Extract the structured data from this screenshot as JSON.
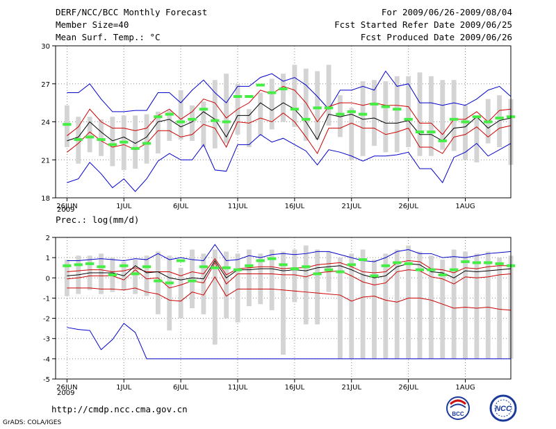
{
  "header": {
    "title": "DERF/NCC/BCC Monthly Forecast",
    "member_size": "Member Size=40",
    "valid_range": "For 2009/06/26-2009/08/04",
    "started_refer": "Fcst Started Refer Date 2009/06/25",
    "produced": "Fcst Produced Date 2009/06/26"
  },
  "footer": {
    "url": "http://cmdp.ncc.cma.gov.cn",
    "credit": "GrADS: COLA/IGES"
  },
  "logos": {
    "bcc_text": "BCC",
    "ncc_text": "NCC"
  },
  "colors": {
    "spread_bar": "#d4d4d4",
    "max_min_line": "#0000cc",
    "quartile_line": "#cc0000",
    "ensemble_mean": "#000000",
    "obs_marker": "#44ee44",
    "grid": "#888888"
  },
  "chart_data": [
    {
      "type": "line",
      "title": "Mean Surf. Temp.: °C",
      "ylim": [
        18,
        30
      ],
      "yticks": [
        18,
        21,
        24,
        27,
        30
      ],
      "x_tick_positions": [
        1,
        6,
        11,
        16,
        21,
        26,
        31,
        36
      ],
      "x_tick_labels": [
        "26JUN",
        "1JUL",
        "6JUL",
        "11JUL",
        "16JUL",
        "21JUL",
        "26JUL",
        "1AUG"
      ],
      "x_sublabel": "2009",
      "xlim": [
        0,
        40
      ],
      "x": [
        1,
        2,
        3,
        4,
        5,
        6,
        7,
        8,
        9,
        10,
        11,
        12,
        13,
        14,
        15,
        16,
        17,
        18,
        19,
        20,
        21,
        22,
        23,
        24,
        25,
        26,
        27,
        28,
        29,
        30,
        31,
        32,
        33,
        34,
        35,
        36,
        37,
        38,
        39,
        40
      ],
      "spread_low": [
        22.0,
        20.7,
        21.6,
        21.3,
        20.5,
        20.2,
        20.3,
        20.7,
        21.5,
        22.5,
        22.6,
        22.5,
        22.0,
        21.9,
        22.3,
        23.0,
        22.0,
        22.9,
        23.4,
        24.0,
        23.6,
        22.5,
        22.6,
        23.7,
        22.8,
        21.0,
        21.3,
        22.1,
        21.6,
        21.6,
        22.0,
        21.3,
        21.3,
        21.8,
        21.7,
        21.0,
        20.8,
        22.3,
        22.0,
        20.6
      ],
      "spread_high": [
        25.3,
        24.4,
        24.4,
        24.2,
        24.4,
        24.5,
        24.5,
        24.6,
        24.8,
        24.9,
        26.5,
        25.3,
        25.6,
        27.3,
        27.8,
        27.0,
        25.0,
        26.3,
        27.4,
        27.8,
        28.5,
        28.2,
        28.0,
        28.5,
        26.1,
        25.1,
        27.2,
        27.3,
        27.2,
        27.6,
        27.6,
        27.9,
        27.6,
        27.3,
        27.3,
        25.3,
        24.3,
        25.8,
        26.1,
        25.8
      ],
      "series": [
        {
          "name": "ensemble max",
          "values": [
            26.3,
            26.3,
            27.0,
            25.8,
            24.8,
            24.8,
            24.9,
            24.9,
            26.3,
            26.3,
            25.5,
            26.5,
            27.3,
            26.3,
            25.5,
            26.8,
            26.8,
            27.5,
            27.8,
            27.2,
            27.5,
            26.9,
            26.0,
            25.0,
            26.5,
            26.5,
            26.8,
            26.5,
            28.0,
            26.8,
            27.0,
            25.5,
            25.5,
            25.3,
            25.5,
            25.3,
            25.8,
            26.5,
            26.8,
            26.0
          ]
        },
        {
          "name": "upper quartile",
          "values": [
            22.9,
            23.6,
            25.0,
            24.0,
            23.5,
            23.5,
            23.3,
            23.5,
            24.5,
            25.0,
            24.2,
            24.8,
            25.8,
            25.5,
            24.3,
            25.0,
            25.5,
            26.5,
            26.2,
            26.8,
            26.5,
            25.5,
            24.0,
            25.2,
            25.5,
            25.5,
            25.3,
            25.5,
            25.3,
            25.3,
            25.2,
            23.9,
            23.9,
            23.0,
            24.2,
            24.2,
            24.8,
            24.0,
            24.9,
            25.0
          ]
        },
        {
          "name": "ensemble mean",
          "values": [
            22.5,
            22.8,
            24.0,
            23.2,
            22.5,
            22.8,
            22.3,
            22.8,
            24.0,
            24.2,
            23.6,
            24.0,
            24.8,
            24.2,
            22.8,
            24.5,
            24.5,
            25.5,
            24.9,
            25.5,
            25.0,
            24.0,
            22.6,
            24.6,
            24.4,
            24.6,
            24.2,
            24.3,
            23.9,
            23.9,
            24.1,
            23.0,
            23.0,
            22.5,
            23.5,
            23.6,
            24.4,
            23.5,
            24.1,
            24.3
          ]
        },
        {
          "name": "lower quartile",
          "values": [
            21.6,
            22.3,
            23.2,
            22.5,
            22.0,
            22.2,
            21.8,
            22.3,
            23.3,
            23.3,
            22.8,
            23.0,
            23.8,
            23.5,
            22.0,
            24.0,
            23.9,
            24.3,
            24.0,
            24.7,
            24.0,
            22.8,
            21.5,
            23.5,
            23.5,
            23.9,
            23.5,
            23.5,
            23.0,
            23.2,
            23.5,
            22.0,
            22.0,
            21.5,
            22.8,
            23.0,
            23.6,
            22.8,
            23.5,
            23.7
          ]
        },
        {
          "name": "ensemble min",
          "values": [
            19.2,
            19.5,
            20.8,
            19.9,
            18.8,
            19.5,
            18.5,
            19.5,
            20.9,
            21.5,
            21.0,
            21.0,
            22.2,
            20.2,
            20.1,
            22.2,
            22.2,
            23.0,
            22.4,
            22.7,
            22.2,
            21.7,
            20.6,
            21.8,
            21.6,
            21.3,
            20.9,
            21.3,
            21.3,
            21.4,
            21.6,
            20.3,
            20.3,
            19.2,
            21.2,
            21.6,
            22.3,
            21.3,
            21.8,
            22.3
          ]
        },
        {
          "name": "observation",
          "values": [
            23.8,
            22.6,
            22.8,
            22.6,
            22.2,
            22.4,
            21.9,
            22.3,
            24.4,
            24.6,
            24.0,
            24.2,
            25.0,
            24.1,
            24.0,
            26.0,
            26.0,
            26.9,
            26.3,
            26.6,
            25.0,
            24.2,
            25.1,
            25.1,
            24.6,
            24.8,
            24.6,
            25.4,
            25.2,
            25.0,
            24.2,
            23.2,
            23.2,
            22.5,
            24.2,
            24.0,
            24.4,
            24.0,
            24.3,
            24.4
          ]
        }
      ]
    },
    {
      "type": "line",
      "title": "Prec.: log(mm/d)",
      "ylim": [
        -5,
        2
      ],
      "yticks": [
        -5,
        -4,
        -3,
        -2,
        -1,
        0,
        1,
        2
      ],
      "x_tick_positions": [
        1,
        6,
        11,
        16,
        21,
        26,
        31,
        36
      ],
      "x_tick_labels": [
        "26JUN",
        "1JUL",
        "6JUL",
        "11JUL",
        "16JUL",
        "21JUL",
        "26JUL",
        "1AUG"
      ],
      "x_sublabel": "2009",
      "xlim": [
        0,
        40
      ],
      "x": [
        1,
        2,
        3,
        4,
        5,
        6,
        7,
        8,
        9,
        10,
        11,
        12,
        13,
        14,
        15,
        16,
        17,
        18,
        19,
        20,
        21,
        22,
        23,
        24,
        25,
        26,
        27,
        28,
        29,
        30,
        31,
        32,
        33,
        34,
        35,
        36,
        37,
        38,
        39,
        40
      ],
      "spread_low": [
        -0.9,
        -0.8,
        -0.6,
        -0.8,
        -0.7,
        -0.6,
        -0.8,
        -0.9,
        -1.8,
        -2.6,
        -2.0,
        -1.5,
        -1.8,
        -3.3,
        -2.0,
        -2.2,
        -1.4,
        -1.3,
        -1.6,
        -3.8,
        -1.2,
        -2.3,
        -2.3,
        -0.7,
        -4.0,
        -4.0,
        -4.0,
        -4.0,
        -4.0,
        -4.0,
        -4.0,
        -4.0,
        -4.0,
        -4.0,
        -4.0,
        -4.0,
        -4.0,
        -4.0,
        -4.0,
        -4.0
      ],
      "spread_high": [
        0.9,
        1.1,
        1.1,
        1.2,
        1.0,
        0.8,
        0.9,
        1.1,
        1.3,
        1.1,
        0.5,
        1.4,
        1.2,
        1.4,
        1.3,
        1.2,
        1.4,
        1.2,
        1.4,
        1.3,
        1.4,
        1.6,
        1.4,
        1.3,
        1.0,
        1.2,
        1.4,
        0.9,
        1.2,
        1.4,
        1.6,
        1.3,
        1.1,
        0.9,
        1.4,
        1.3,
        1.2,
        1.3,
        1.0,
        1.1
      ],
      "series": [
        {
          "name": "ensemble max",
          "values": [
            0.85,
            0.85,
            0.9,
            0.95,
            0.9,
            0.85,
            0.95,
            0.9,
            1.2,
            0.9,
            1.0,
            0.9,
            0.85,
            1.65,
            0.85,
            0.9,
            1.1,
            1.0,
            1.15,
            1.2,
            1.15,
            1.2,
            1.3,
            1.3,
            1.15,
            1.0,
            0.85,
            0.8,
            1.0,
            1.3,
            1.4,
            1.2,
            1.2,
            1.0,
            1.05,
            1.0,
            1.1,
            1.2,
            1.25,
            1.3
          ]
        },
        {
          "name": "upper quartile",
          "values": [
            0.3,
            0.35,
            0.4,
            0.4,
            0.3,
            0.35,
            0.5,
            0.3,
            0.3,
            0.3,
            0.1,
            0.3,
            0.2,
            0.95,
            0.15,
            0.45,
            0.5,
            0.55,
            0.55,
            0.45,
            0.5,
            0.5,
            0.65,
            0.7,
            0.75,
            0.55,
            0.3,
            0.25,
            0.3,
            0.75,
            0.85,
            0.8,
            0.45,
            0.4,
            0.25,
            0.5,
            0.45,
            0.55,
            0.6,
            0.6
          ]
        },
        {
          "name": "ensemble mean",
          "values": [
            0.1,
            0.15,
            0.25,
            0.25,
            0.25,
            0.1,
            0.6,
            0.25,
            0.3,
            0.0,
            -0.1,
            0.0,
            -0.05,
            0.85,
            0.0,
            0.4,
            0.4,
            0.45,
            0.45,
            0.35,
            0.4,
            0.35,
            0.5,
            0.55,
            0.6,
            0.4,
            0.15,
            0.0,
            0.1,
            0.55,
            0.7,
            0.65,
            0.3,
            0.25,
            0.0,
            0.35,
            0.3,
            0.35,
            0.4,
            0.45
          ]
        },
        {
          "name": "lower quartile",
          "values": [
            -0.05,
            0.0,
            0.1,
            0.1,
            0.1,
            -0.1,
            0.4,
            -0.05,
            0.0,
            -0.5,
            -0.35,
            -0.15,
            -0.25,
            0.75,
            -0.3,
            0.2,
            0.2,
            0.2,
            0.2,
            0.15,
            0.15,
            0.05,
            0.25,
            0.3,
            0.35,
            0.1,
            -0.2,
            -0.35,
            -0.25,
            0.3,
            0.4,
            0.35,
            0.05,
            -0.05,
            -0.3,
            0.05,
            0.0,
            0.05,
            0.15,
            0.2
          ]
        },
        {
          "name": "ensemble 10th pct",
          "values": [
            -0.5,
            -0.5,
            -0.5,
            -0.55,
            -0.55,
            -0.6,
            -0.5,
            -0.7,
            -0.8,
            -1.1,
            -1.15,
            -0.7,
            -0.85,
            0.05,
            -0.9,
            -0.55,
            -0.55,
            -0.55,
            -0.55,
            -0.6,
            -0.65,
            -0.7,
            -0.75,
            -0.8,
            -0.85,
            -1.15,
            -0.95,
            -0.9,
            -1.1,
            -1.2,
            -1.0,
            -1.0,
            -1.1,
            -1.3,
            -1.5,
            -1.45,
            -1.5,
            -1.45,
            -1.55,
            -1.6
          ]
        },
        {
          "name": "ensemble min",
          "values": [
            -2.45,
            -2.55,
            -2.6,
            -3.55,
            -3.05,
            -2.25,
            -2.7,
            -4.0,
            -4.0,
            -4.0,
            -4.0,
            -4.0,
            -4.0,
            -4.0,
            -4.0,
            -4.0,
            -4.0,
            -4.0,
            -4.0,
            -4.0,
            -4.0,
            -4.0,
            -4.0,
            -4.0,
            -4.0,
            -4.0,
            -4.0,
            -4.0,
            -4.0,
            -4.0,
            -4.0,
            -4.0,
            -4.0,
            -4.0,
            -4.0,
            -4.0,
            -4.0,
            -4.0,
            -4.0,
            -4.0
          ]
        },
        {
          "name": "observation",
          "values": [
            0.6,
            0.65,
            0.7,
            0.55,
            0.15,
            0.6,
            0.2,
            0.55,
            -0.15,
            -0.25,
            0.85,
            -0.15,
            0.55,
            0.5,
            0.5,
            0.4,
            0.6,
            0.85,
            0.95,
            0.65,
            0.45,
            0.55,
            0.2,
            0.4,
            0.3,
            0.65,
            0.9,
            0.1,
            0.6,
            0.75,
            0.7,
            0.4,
            0.4,
            0.15,
            0.4,
            0.8,
            0.75,
            0.75,
            0.7,
            0.6
          ]
        }
      ]
    }
  ]
}
